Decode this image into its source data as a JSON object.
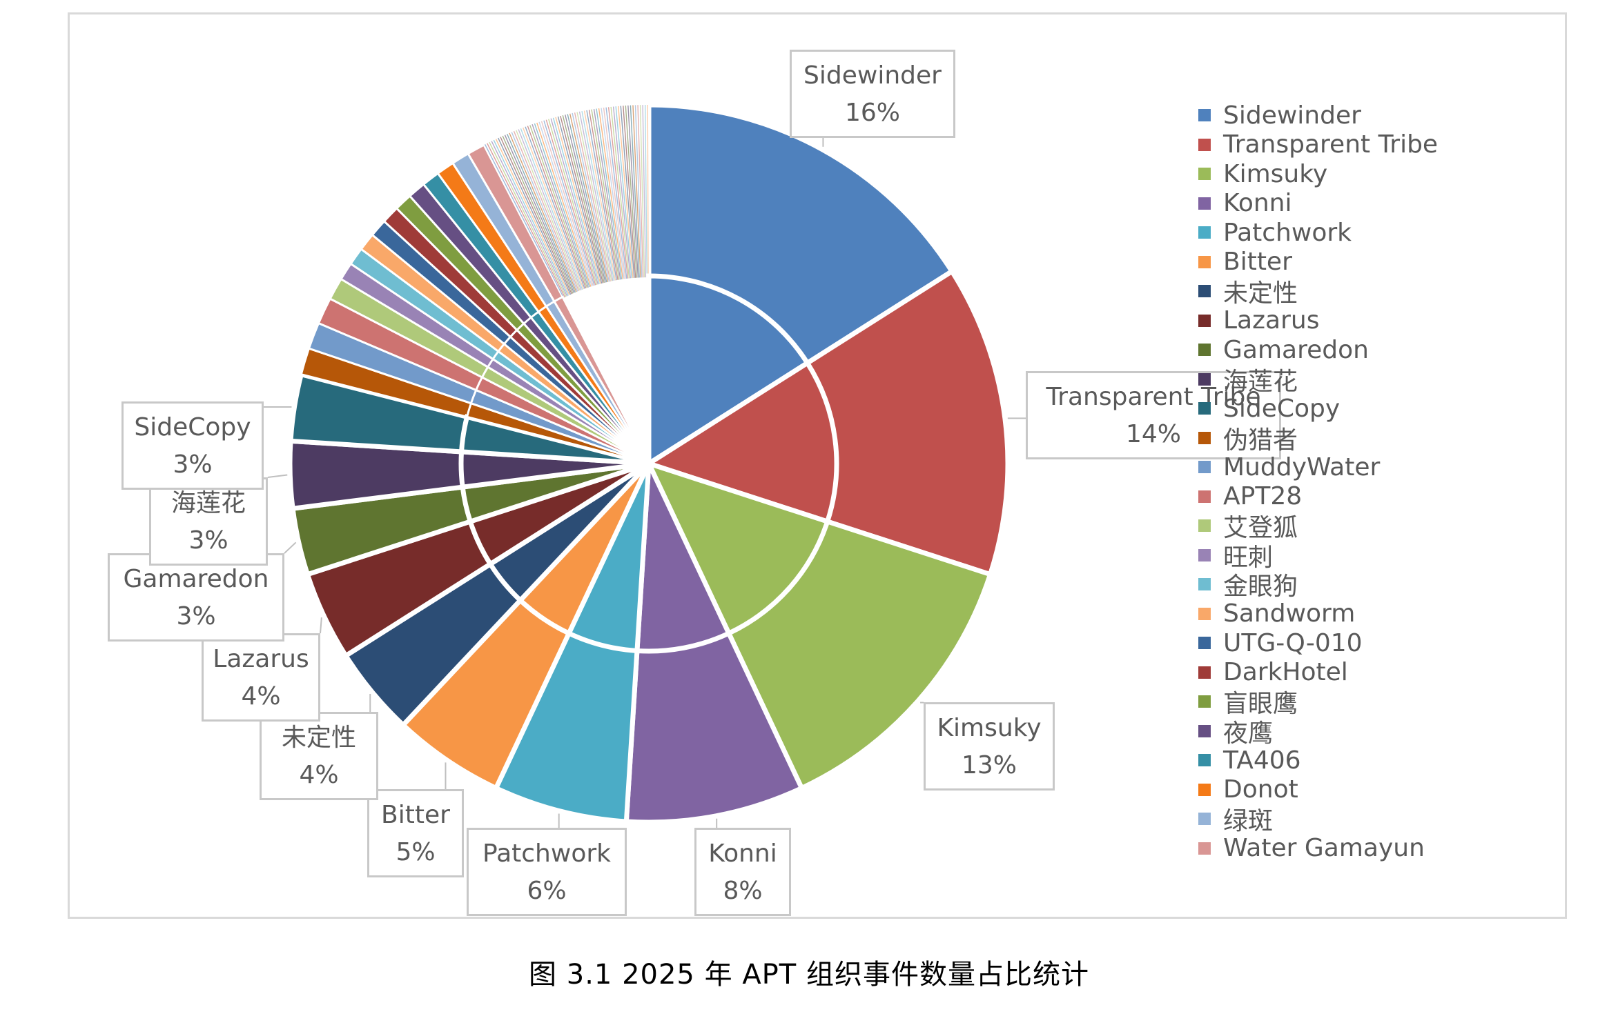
{
  "chart_data": {
    "type": "pie",
    "title": "",
    "labels": [
      "Sidewinder",
      "Transparent Tribe",
      "Kimsuky",
      "Konni",
      "Patchwork",
      "Bitter",
      "未定性",
      "Lazarus",
      "Gamaredon",
      "海莲花",
      "SideCopy",
      "伪猎者",
      "MuddyWater",
      "APT28",
      "艾登狐",
      "旺刺",
      "金眼狗",
      "Sandworm",
      "UTG-Q-010",
      "DarkHotel",
      "盲眼鹰",
      "夜鹰",
      "TA406",
      "Donot",
      "绿斑",
      "Water Gamayun"
    ],
    "values": [
      16,
      14,
      13,
      8,
      6,
      5,
      4,
      4,
      3,
      3,
      3,
      1.2,
      1.2,
      1.2,
      1.0,
      0.8,
      0.8,
      0.8,
      0.8,
      0.8,
      0.8,
      0.8,
      0.8,
      0.8,
      0.8,
      0.8
    ],
    "data_labels": [
      {
        "name": "Sidewinder",
        "pct": "16%"
      },
      {
        "name": "Transparent Tribe",
        "pct": "14%"
      },
      {
        "name": "Kimsuky",
        "pct": "13%"
      },
      {
        "name": "Konni",
        "pct": "8%"
      },
      {
        "name": "Patchwork",
        "pct": "6%"
      },
      {
        "name": "Bitter",
        "pct": "5%"
      },
      {
        "name": "未定性",
        "pct": "4%"
      },
      {
        "name": "Lazarus",
        "pct": "4%"
      },
      {
        "name": "Gamaredon",
        "pct": "3%"
      },
      {
        "name": "海莲花",
        "pct": "3%"
      },
      {
        "name": "SideCopy",
        "pct": "3%"
      }
    ],
    "colors": [
      "#4f81bd",
      "#c0504d",
      "#9bbb59",
      "#8064a2",
      "#4bacc6",
      "#f79646",
      "#2c4d75",
      "#772c2a",
      "#5f7530",
      "#4d3b62",
      "#276a7c",
      "#b65708",
      "#729aca",
      "#cd7371",
      "#afc97a",
      "#9983b5",
      "#6fbdd1",
      "#f9a869",
      "#3a679b",
      "#9f3b38",
      "#7f9d40",
      "#664f83",
      "#358fa5",
      "#f47a17",
      "#95b3d7",
      "#d99694"
    ],
    "legend_position": "right",
    "caption": "图 3.1   2025 年 APT 组织事件数量占比统计"
  }
}
